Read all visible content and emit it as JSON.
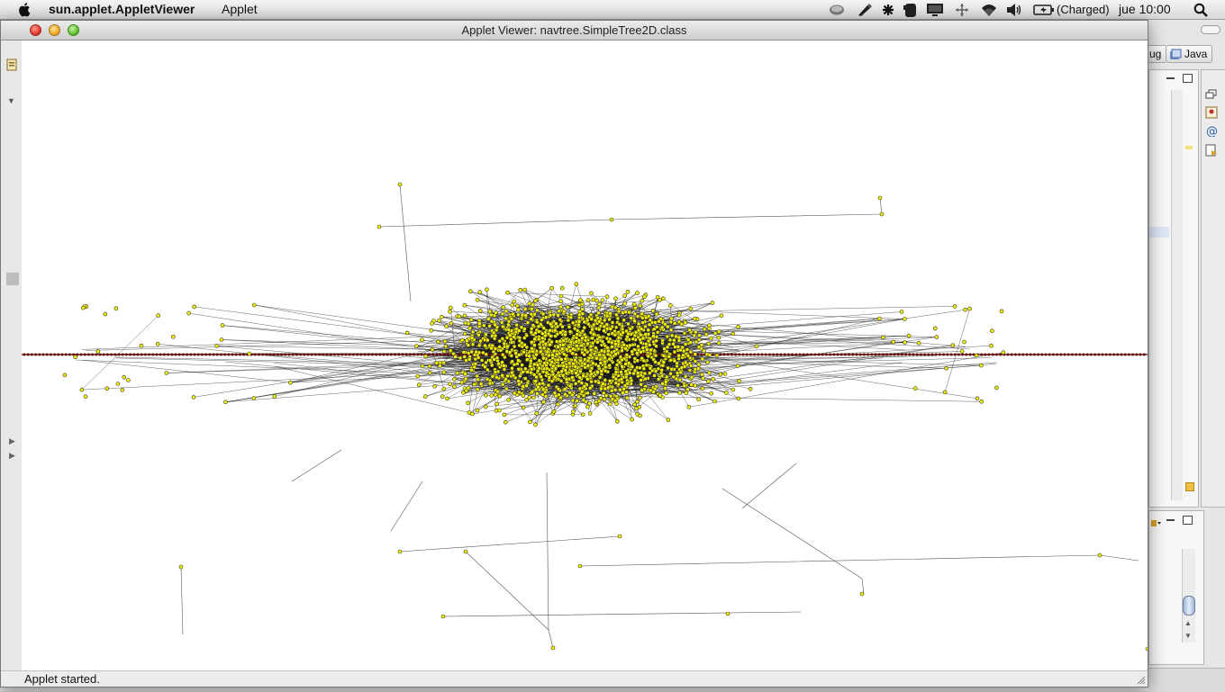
{
  "menubar": {
    "app_name": "sun.applet.AppletViewer",
    "menus": [
      "Applet"
    ],
    "battery_status": "(Charged)",
    "clock": "jue 10:00",
    "status_icons": [
      "time-machine-icon",
      "pen-icon",
      "bluetooth-icon",
      "evernote-icon",
      "display-icon",
      "move-icon",
      "wifi-icon",
      "volume-icon",
      "battery-icon",
      "spotlight-icon"
    ]
  },
  "window": {
    "title": "Applet Viewer: navtree.SimpleTree2D.class",
    "status_text": "Applet started."
  },
  "ide_background": {
    "perspective_button": "Java",
    "partial_button": "ug"
  },
  "visualization": {
    "node_color": "#f2f200",
    "node_stroke": "#333333",
    "edge_color": "#1a1a1a",
    "axis_node_color": "#5a1010",
    "axis_line_color": "#8b1a1a"
  }
}
